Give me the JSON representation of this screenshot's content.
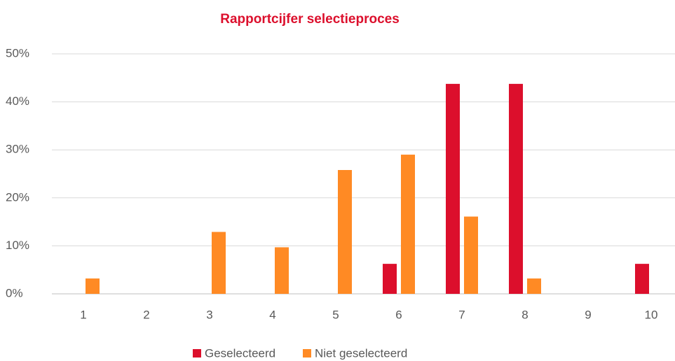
{
  "chart_data": {
    "type": "bar",
    "title": "Rapportcijfer selectieproces",
    "categories": [
      "1",
      "2",
      "3",
      "4",
      "5",
      "6",
      "7",
      "8",
      "9",
      "10"
    ],
    "series": [
      {
        "name": "Geselecteerd",
        "color": "#dc0f2c",
        "values": [
          0,
          0,
          0,
          0,
          0,
          6.25,
          43.75,
          43.75,
          0,
          6.25
        ]
      },
      {
        "name": "Niet geselecteerd",
        "color": "#ff8a24",
        "values": [
          3.2,
          0,
          12.9,
          9.7,
          25.8,
          29.0,
          16.1,
          3.2,
          0,
          0
        ]
      }
    ],
    "ylim": [
      0,
      50
    ],
    "yticks": [
      {
        "value": 0,
        "label": "0%"
      },
      {
        "value": 10,
        "label": "10%"
      },
      {
        "value": 20,
        "label": "20%"
      },
      {
        "value": 30,
        "label": "30%"
      },
      {
        "value": 40,
        "label": "40%"
      },
      {
        "value": 50,
        "label": "50%"
      }
    ],
    "grid": true,
    "legend": "bottom"
  }
}
